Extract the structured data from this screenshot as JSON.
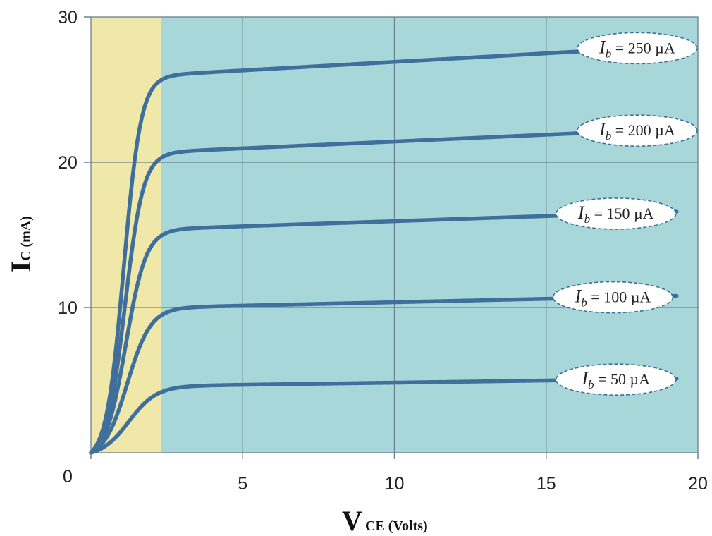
{
  "chart_data": {
    "type": "line",
    "xlabel": {
      "main": "V",
      "sub": "CE (Volts)"
    },
    "ylabel": {
      "main": "I",
      "sub": "C (mA)"
    },
    "xlim": [
      0,
      20
    ],
    "ylim": [
      0,
      30
    ],
    "x_ticks": [
      "0",
      "5",
      "10",
      "15",
      "20"
    ],
    "y_ticks": [
      "10",
      "20",
      "30"
    ],
    "grid": true,
    "saturation_region": {
      "x": [
        0,
        2.3
      ],
      "color": "#efe8a8"
    },
    "active_region_color": "#a7d7d8",
    "line_color": "#3f6f9c",
    "series": [
      {
        "name": "I_b = 50 µA",
        "label_parts": [
          "I",
          "b",
          " = 50 µA"
        ],
        "knee": 4.6,
        "end": 5.1,
        "k": 2.2,
        "x50": 1.25
      },
      {
        "name": "I_b = 100 µA",
        "label_parts": [
          "I",
          "b",
          " = 100 µA"
        ],
        "knee": 10.0,
        "end": 10.8,
        "k": 2.6,
        "x50": 1.2
      },
      {
        "name": "I_b = 150 µA",
        "label_parts": [
          "I",
          "b",
          " = 150 µA"
        ],
        "knee": 15.4,
        "end": 16.6,
        "k": 3.0,
        "x50": 1.15
      },
      {
        "name": "I_b = 200 µA",
        "label_parts": [
          "I",
          "b",
          " = 200 µA"
        ],
        "knee": 20.7,
        "end": 22.3,
        "k": 3.3,
        "x50": 1.12
      },
      {
        "name": "I_b = 250 µA",
        "label_parts": [
          "I",
          "b",
          " = 250 µA"
        ],
        "knee": 26.0,
        "end": 28.0,
        "k": 3.5,
        "x50": 1.08
      }
    ]
  }
}
